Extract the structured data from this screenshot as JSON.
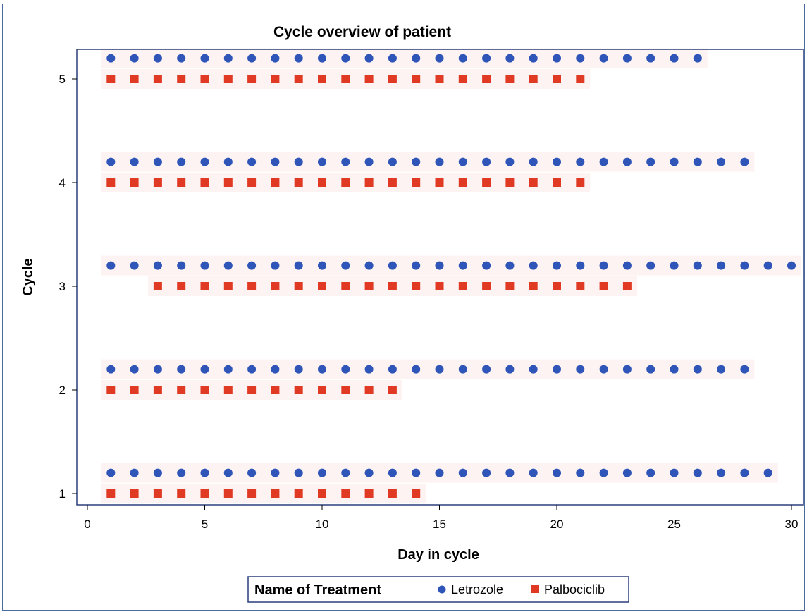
{
  "chart_data": {
    "type": "scatter",
    "title": "Cycle overview of patient",
    "xlabel": "Day in cycle",
    "ylabel": "Cycle",
    "xlim": [
      0,
      30
    ],
    "ylim": [
      1,
      5
    ],
    "xticks": [
      0,
      5,
      10,
      15,
      20,
      25,
      30
    ],
    "yticks": [
      1,
      2,
      3,
      4,
      5
    ],
    "grid": false,
    "legend": {
      "title": "Name of Treatment",
      "placement": "bottom"
    },
    "series": [
      {
        "name": "Letrozole",
        "marker": "circle",
        "color": "#2f55b8",
        "y_offset": 0.2,
        "cycles": [
          {
            "cycle": 1,
            "days": [
              1,
              2,
              3,
              4,
              5,
              6,
              7,
              8,
              9,
              10,
              11,
              12,
              13,
              14,
              15,
              16,
              17,
              18,
              19,
              20,
              21,
              22,
              23,
              24,
              25,
              26,
              27,
              28,
              29
            ]
          },
          {
            "cycle": 2,
            "days": [
              1,
              2,
              3,
              4,
              5,
              6,
              7,
              8,
              9,
              10,
              11,
              12,
              13,
              14,
              15,
              16,
              17,
              18,
              19,
              20,
              21,
              22,
              23,
              24,
              25,
              26,
              27,
              28
            ]
          },
          {
            "cycle": 3,
            "days": [
              1,
              2,
              3,
              4,
              5,
              6,
              7,
              8,
              9,
              10,
              11,
              12,
              13,
              14,
              15,
              16,
              17,
              18,
              19,
              20,
              21,
              22,
              23,
              24,
              25,
              26,
              27,
              28,
              29,
              30
            ]
          },
          {
            "cycle": 4,
            "days": [
              1,
              2,
              3,
              4,
              5,
              6,
              7,
              8,
              9,
              10,
              11,
              12,
              13,
              14,
              15,
              16,
              17,
              18,
              19,
              20,
              21,
              22,
              23,
              24,
              25,
              26,
              27,
              28
            ]
          },
          {
            "cycle": 5,
            "days": [
              1,
              2,
              3,
              4,
              5,
              6,
              7,
              8,
              9,
              10,
              11,
              12,
              13,
              14,
              15,
              16,
              17,
              18,
              19,
              20,
              21,
              22,
              23,
              24,
              25,
              26
            ]
          }
        ]
      },
      {
        "name": "Palbociclib",
        "marker": "square",
        "color": "#e03a25",
        "y_offset": 0,
        "cycles": [
          {
            "cycle": 1,
            "days": [
              1,
              2,
              3,
              4,
              5,
              6,
              7,
              8,
              9,
              10,
              11,
              12,
              13,
              14
            ]
          },
          {
            "cycle": 2,
            "days": [
              1,
              2,
              3,
              4,
              5,
              6,
              7,
              8,
              9,
              10,
              11,
              12,
              13
            ]
          },
          {
            "cycle": 3,
            "days": [
              3,
              4,
              5,
              6,
              7,
              8,
              9,
              10,
              11,
              12,
              13,
              14,
              15,
              16,
              17,
              18,
              19,
              20,
              21,
              22,
              23
            ]
          },
          {
            "cycle": 4,
            "days": [
              1,
              2,
              3,
              4,
              5,
              6,
              7,
              8,
              9,
              10,
              11,
              12,
              13,
              14,
              15,
              16,
              17,
              18,
              19,
              20,
              21
            ]
          },
          {
            "cycle": 5,
            "days": [
              1,
              2,
              3,
              4,
              5,
              6,
              7,
              8,
              9,
              10,
              11,
              12,
              13,
              14,
              15,
              16,
              17,
              18,
              19,
              20,
              21
            ]
          }
        ]
      }
    ]
  }
}
